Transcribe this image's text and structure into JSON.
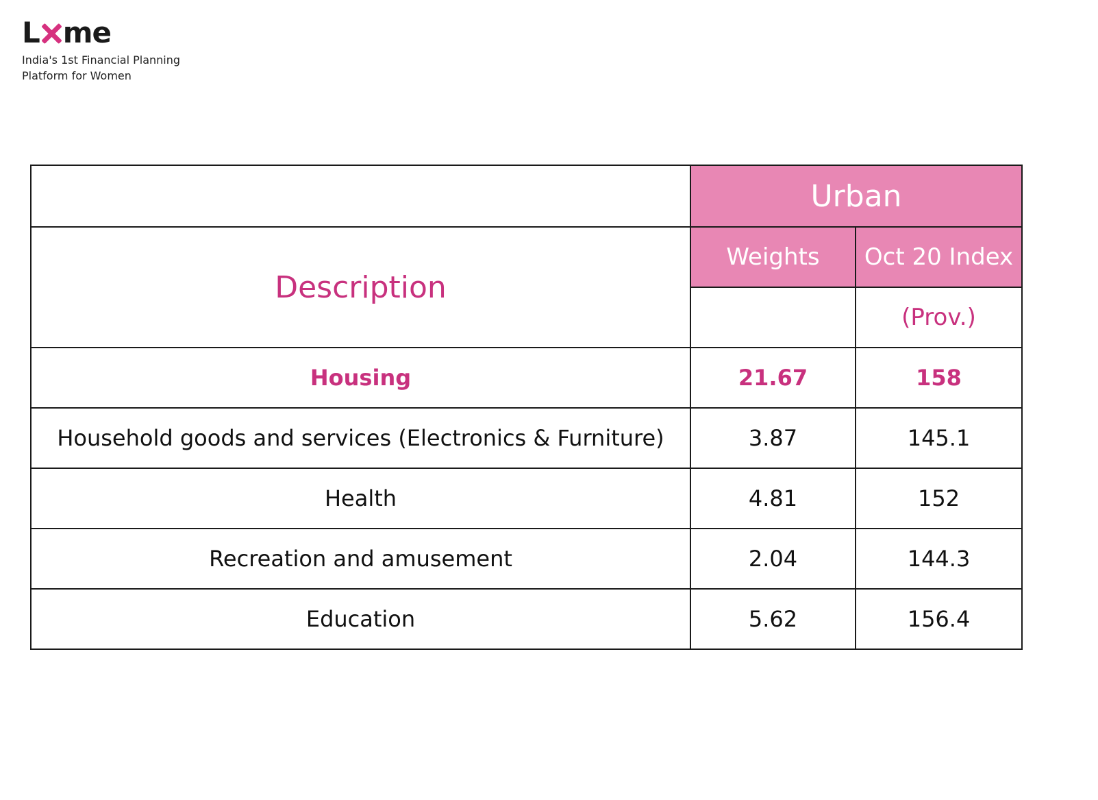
{
  "brand": {
    "logo_text_l": "L",
    "logo_text_me": "me",
    "tagline_line1": "India's 1st Financial Planning",
    "tagline_line2": "Platform for Women",
    "accent_color": "#d6317f",
    "header_fill_color": "#e887b4"
  },
  "table": {
    "group_header": "Urban",
    "description_header": "Description",
    "weights_header": "Weights",
    "index_header": "Oct 20 Index",
    "index_subheader": "(Prov.)",
    "rows": [
      {
        "description": "Housing",
        "weight": "21.67",
        "index": "158",
        "highlighted": true
      },
      {
        "description": "Household goods and services (Electronics & Furniture)",
        "weight": "3.87",
        "index": "145.1",
        "highlighted": false
      },
      {
        "description": "Health",
        "weight": "4.81",
        "index": "152",
        "highlighted": false
      },
      {
        "description": "Recreation and amusement",
        "weight": "2.04",
        "index": "144.3",
        "highlighted": false
      },
      {
        "description": "Education",
        "weight": "5.62",
        "index": "156.4",
        "highlighted": false
      }
    ]
  }
}
